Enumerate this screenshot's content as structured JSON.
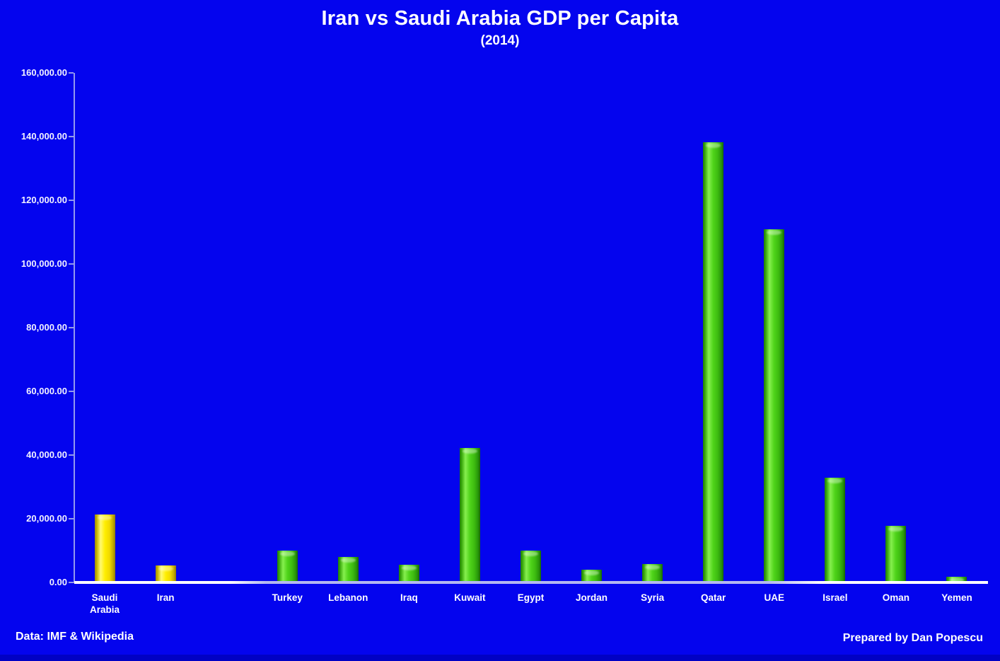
{
  "title": "Iran vs Saudi Arabia GDP per Capita",
  "subtitle": "(2014)",
  "footer": {
    "left": "Data: IMF & Wikipedia",
    "right": "Prepared by Dan Popescu"
  },
  "colors": {
    "background": "#0404ee",
    "bar_green": "#4fd41a",
    "bar_yellow": "#ffee00",
    "axis": "#9298ee",
    "text": "#ffffff",
    "bottom_strip": "#0101c4"
  },
  "chart_data": {
    "type": "bar",
    "title": "Iran vs Saudi Arabia GDP per Capita",
    "subtitle": "(2014)",
    "categories": [
      "Saudi Arabia",
      "Iran",
      "",
      "Turkey",
      "Lebanon",
      "Iraq",
      "Kuwait",
      "Egypt",
      "Jordan",
      "Syria",
      "Qatar",
      "UAE",
      "Israel",
      "Oman",
      "Yemen"
    ],
    "values": [
      21400,
      5400,
      null,
      10000,
      7900,
      5600,
      42200,
      10000,
      3900,
      5800,
      138200,
      110900,
      32900,
      17800,
      1800
    ],
    "bar_colors": [
      "yellow",
      "yellow",
      null,
      "green",
      "green",
      "green",
      "green",
      "green",
      "green",
      "green",
      "green",
      "green",
      "green",
      "green",
      "green"
    ],
    "xlabel": "",
    "ylabel": "",
    "ylim": [
      0,
      160000
    ],
    "y_tick_step": 20000,
    "y_ticks": [
      "0.00",
      "20,000.00",
      "40,000.00",
      "60,000.00",
      "80,000.00",
      "100,000.00",
      "120,000.00",
      "140,000.00",
      "160,000.00"
    ],
    "grid": false,
    "legend": false
  }
}
